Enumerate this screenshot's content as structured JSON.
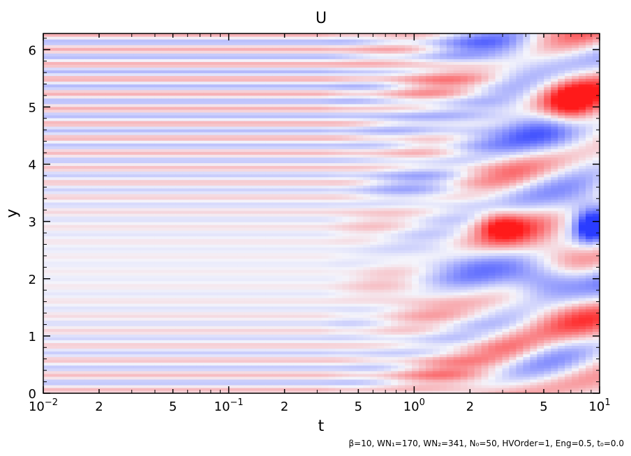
{
  "chart_data": {
    "type": "heatmap",
    "title": "U",
    "xlabel": "t",
    "ylabel": "y",
    "xscale": "log",
    "xlim": [
      0.01,
      10
    ],
    "ylim": [
      0,
      6.2832
    ],
    "x_ticks": [
      {
        "value": 0.01,
        "label": "10",
        "sup": "−2"
      },
      {
        "value": 0.02,
        "label": "2"
      },
      {
        "value": 0.05,
        "label": "5"
      },
      {
        "value": 0.1,
        "label": "10",
        "sup": "−1"
      },
      {
        "value": 0.2,
        "label": "2"
      },
      {
        "value": 0.5,
        "label": "5"
      },
      {
        "value": 1,
        "label": "10",
        "sup": "0"
      },
      {
        "value": 2,
        "label": "2"
      },
      {
        "value": 5,
        "label": "5"
      },
      {
        "value": 10,
        "label": "10",
        "sup": "1"
      }
    ],
    "y_ticks": [
      {
        "value": 0,
        "label": "0"
      },
      {
        "value": 1,
        "label": "1"
      },
      {
        "value": 2,
        "label": "2"
      },
      {
        "value": 3,
        "label": "3"
      },
      {
        "value": 4,
        "label": "4"
      },
      {
        "value": 5,
        "label": "5"
      },
      {
        "value": 6,
        "label": "6"
      }
    ],
    "colormap": {
      "negative": "#2a3cff",
      "zero": "#f4f4fb",
      "positive": "#ff1a1a"
    },
    "grid": false,
    "footnote": "β=10, WN₁=170, WN₂=341, N₀=50, HVOrder=1, Eng=0.5, t₀=0.0"
  }
}
